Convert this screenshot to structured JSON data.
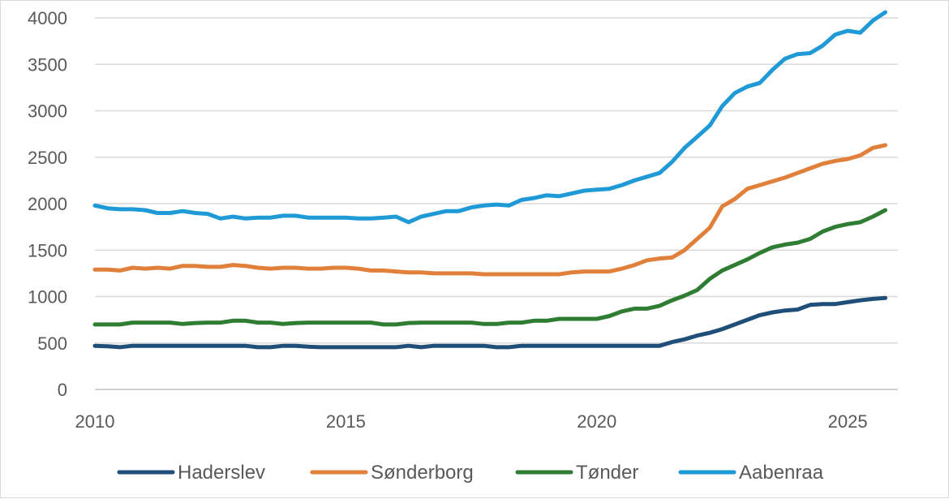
{
  "chart_data": {
    "type": "line",
    "title": "",
    "xlabel": "",
    "ylabel": "",
    "xlim": [
      2010,
      2026
    ],
    "ylim": [
      0,
      4000
    ],
    "x_ticks": [
      2010,
      2015,
      2020,
      2025
    ],
    "y_ticks": [
      0,
      500,
      1000,
      1500,
      2000,
      2500,
      3000,
      3500,
      4000
    ],
    "grid": "horizontal",
    "legend_position": "bottom",
    "x": [
      2010.0,
      2010.25,
      2010.5,
      2010.75,
      2011.0,
      2011.25,
      2011.5,
      2011.75,
      2012.0,
      2012.25,
      2012.5,
      2012.75,
      2013.0,
      2013.25,
      2013.5,
      2013.75,
      2014.0,
      2014.25,
      2014.5,
      2014.75,
      2015.0,
      2015.25,
      2015.5,
      2015.75,
      2016.0,
      2016.25,
      2016.5,
      2016.75,
      2017.0,
      2017.25,
      2017.5,
      2017.75,
      2018.0,
      2018.25,
      2018.5,
      2018.75,
      2019.0,
      2019.25,
      2019.5,
      2019.75,
      2020.0,
      2020.25,
      2020.5,
      2020.75,
      2021.0,
      2021.25,
      2021.5,
      2021.75,
      2022.0,
      2022.25,
      2022.5,
      2022.75,
      2023.0,
      2023.25,
      2023.5,
      2023.75,
      2024.0,
      2024.25,
      2024.5,
      2024.75,
      2025.0,
      2025.25,
      2025.5,
      2025.75
    ],
    "series": [
      {
        "name": "Haderslev",
        "color": "#1f4e79",
        "values": [
          470,
          465,
          455,
          470,
          470,
          470,
          470,
          470,
          470,
          470,
          470,
          470,
          470,
          455,
          455,
          470,
          470,
          460,
          455,
          455,
          455,
          455,
          455,
          455,
          455,
          470,
          455,
          470,
          470,
          470,
          470,
          470,
          455,
          455,
          470,
          470,
          470,
          470,
          470,
          470,
          470,
          470,
          470,
          470,
          470,
          470,
          510,
          540,
          580,
          610,
          650,
          700,
          750,
          800,
          830,
          850,
          860,
          910,
          920,
          920,
          940,
          960,
          975,
          985
        ]
      },
      {
        "name": "Sønderborg",
        "color": "#e0803a",
        "values": [
          1290,
          1290,
          1280,
          1310,
          1300,
          1310,
          1300,
          1330,
          1330,
          1320,
          1320,
          1340,
          1330,
          1310,
          1300,
          1310,
          1310,
          1300,
          1300,
          1310,
          1310,
          1300,
          1280,
          1280,
          1270,
          1260,
          1260,
          1250,
          1250,
          1250,
          1250,
          1240,
          1240,
          1240,
          1240,
          1240,
          1240,
          1240,
          1260,
          1270,
          1270,
          1270,
          1300,
          1340,
          1390,
          1410,
          1420,
          1500,
          1620,
          1740,
          1970,
          2050,
          2160,
          2200,
          2240,
          2280,
          2330,
          2380,
          2430,
          2460,
          2480,
          2520,
          2600,
          2630
        ]
      },
      {
        "name": "Tønder",
        "color": "#2e7d32",
        "values": [
          700,
          700,
          700,
          720,
          720,
          720,
          720,
          705,
          715,
          720,
          720,
          740,
          740,
          720,
          720,
          705,
          715,
          720,
          720,
          720,
          720,
          720,
          720,
          700,
          700,
          715,
          720,
          720,
          720,
          720,
          720,
          705,
          705,
          720,
          720,
          740,
          740,
          760,
          760,
          760,
          760,
          790,
          840,
          870,
          870,
          900,
          960,
          1010,
          1070,
          1190,
          1280,
          1340,
          1400,
          1470,
          1530,
          1560,
          1580,
          1620,
          1700,
          1750,
          1780,
          1800,
          1860,
          1930
        ]
      },
      {
        "name": "Aabenraa",
        "color": "#1f9ad6",
        "values": [
          1980,
          1950,
          1940,
          1940,
          1930,
          1900,
          1900,
          1920,
          1900,
          1890,
          1840,
          1860,
          1840,
          1850,
          1850,
          1870,
          1870,
          1850,
          1850,
          1850,
          1850,
          1840,
          1840,
          1850,
          1860,
          1800,
          1860,
          1890,
          1920,
          1920,
          1960,
          1980,
          1990,
          1980,
          2040,
          2060,
          2090,
          2080,
          2110,
          2140,
          2150,
          2160,
          2200,
          2250,
          2290,
          2330,
          2450,
          2600,
          2720,
          2840,
          3050,
          3190,
          3260,
          3300,
          3440,
          3560,
          3610,
          3620,
          3700,
          3820,
          3860,
          3840,
          3970,
          4060
        ]
      }
    ]
  }
}
